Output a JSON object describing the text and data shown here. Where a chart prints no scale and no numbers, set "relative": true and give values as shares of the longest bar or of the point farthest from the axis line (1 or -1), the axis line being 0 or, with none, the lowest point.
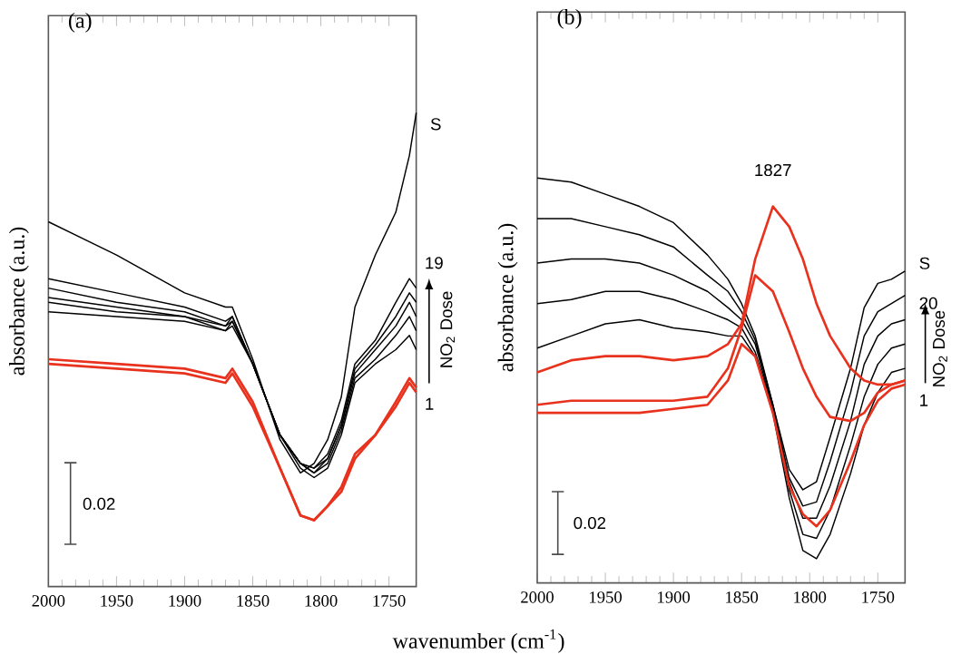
{
  "chart_data": [
    {
      "type": "line",
      "title": "(a)",
      "xlabel": "wavenumber (cm$^{-1}$)",
      "ylabel": "absorbance (a.u.)",
      "relative": true,
      "x": [
        2000,
        1950,
        1900,
        1870,
        1865,
        1850,
        1830,
        1815,
        1805,
        1795,
        1785,
        1775,
        1760,
        1745,
        1735,
        1730
      ],
      "xlim": [
        2000,
        1730
      ],
      "xticks": [
        2000,
        1950,
        1900,
        1850,
        1800,
        1750
      ],
      "series": [
        {
          "color": "#000000",
          "values": [
            0.77,
            0.7,
            0.62,
            0.59,
            0.59,
            0.48,
            0.31,
            0.24,
            0.26,
            0.31,
            0.4,
            0.59,
            0.7,
            0.79,
            0.91,
            1.0
          ]
        },
        {
          "color": "#000000",
          "values": [
            0.58,
            0.57,
            0.56,
            0.54,
            0.55,
            0.47,
            0.32,
            0.25,
            0.23,
            0.25,
            0.32,
            0.43,
            0.47,
            0.5,
            0.53,
            0.5
          ]
        },
        {
          "color": "#000000",
          "values": [
            0.6,
            0.58,
            0.57,
            0.54,
            0.56,
            0.47,
            0.32,
            0.26,
            0.24,
            0.26,
            0.33,
            0.44,
            0.48,
            0.53,
            0.57,
            0.54
          ]
        },
        {
          "color": "#000000",
          "values": [
            0.61,
            0.59,
            0.57,
            0.55,
            0.56,
            0.47,
            0.32,
            0.26,
            0.24,
            0.27,
            0.34,
            0.45,
            0.5,
            0.55,
            0.6,
            0.57
          ]
        },
        {
          "color": "#000000",
          "values": [
            0.63,
            0.6,
            0.58,
            0.55,
            0.57,
            0.47,
            0.32,
            0.26,
            0.25,
            0.27,
            0.34,
            0.46,
            0.51,
            0.57,
            0.62,
            0.6
          ]
        },
        {
          "color": "#000000",
          "values": [
            0.65,
            0.62,
            0.59,
            0.56,
            0.57,
            0.47,
            0.32,
            0.26,
            0.25,
            0.28,
            0.35,
            0.47,
            0.52,
            0.6,
            0.65,
            0.63
          ]
        },
        {
          "color": "#e8321e",
          "values": [
            0.48,
            0.47,
            0.46,
            0.44,
            0.46,
            0.39,
            0.25,
            0.15,
            0.14,
            0.17,
            0.21,
            0.28,
            0.32,
            0.39,
            0.44,
            0.42
          ]
        },
        {
          "color": "#e8321e",
          "values": [
            0.47,
            0.46,
            0.45,
            0.43,
            0.45,
            0.38,
            0.25,
            0.15,
            0.14,
            0.17,
            0.2,
            0.27,
            0.32,
            0.38,
            0.43,
            0.41
          ]
        }
      ],
      "annotations": [
        "S",
        "19",
        "1",
        "NO$_{2}$ Dose",
        "0.02"
      ]
    },
    {
      "type": "line",
      "title": "(b)",
      "ylabel": "absorbance (a.u.)",
      "relative": true,
      "x": [
        2000,
        1975,
        1950,
        1925,
        1900,
        1875,
        1860,
        1850,
        1840,
        1827,
        1815,
        1805,
        1795,
        1785,
        1770,
        1760,
        1750,
        1740,
        1730
      ],
      "xlim": [
        2000,
        1730
      ],
      "xticks": [
        2000,
        1950,
        1900,
        1850,
        1800,
        1750
      ],
      "series": [
        {
          "color": "#000000",
          "values": [
            1.0,
            0.99,
            0.96,
            0.93,
            0.89,
            0.81,
            0.75,
            0.69,
            0.61,
            0.44,
            0.28,
            0.23,
            0.25,
            0.36,
            0.53,
            0.68,
            0.74,
            0.75,
            0.77
          ]
        },
        {
          "color": "#000000",
          "values": [
            0.9,
            0.9,
            0.88,
            0.86,
            0.83,
            0.76,
            0.72,
            0.67,
            0.6,
            0.44,
            0.26,
            0.19,
            0.2,
            0.3,
            0.47,
            0.61,
            0.67,
            0.69,
            0.71
          ]
        },
        {
          "color": "#000000",
          "values": [
            0.79,
            0.8,
            0.8,
            0.79,
            0.76,
            0.72,
            0.68,
            0.65,
            0.59,
            0.43,
            0.25,
            0.16,
            0.16,
            0.24,
            0.4,
            0.54,
            0.61,
            0.64,
            0.65
          ]
        },
        {
          "color": "#000000",
          "values": [
            0.69,
            0.7,
            0.72,
            0.72,
            0.7,
            0.67,
            0.65,
            0.63,
            0.57,
            0.43,
            0.23,
            0.12,
            0.11,
            0.18,
            0.34,
            0.46,
            0.54,
            0.58,
            0.59
          ]
        },
        {
          "color": "#000000",
          "values": [
            0.58,
            0.61,
            0.64,
            0.65,
            0.63,
            0.62,
            0.61,
            0.61,
            0.56,
            0.42,
            0.21,
            0.08,
            0.06,
            0.12,
            0.27,
            0.39,
            0.47,
            0.52,
            0.53
          ]
        },
        {
          "color": "#e8321e",
          "values": [
            0.52,
            0.55,
            0.56,
            0.56,
            0.55,
            0.56,
            0.59,
            0.64,
            0.8,
            0.93,
            0.88,
            0.8,
            0.69,
            0.61,
            0.53,
            0.5,
            0.49,
            0.49,
            0.5
          ]
        },
        {
          "color": "#e8321e",
          "values": [
            0.44,
            0.45,
            0.45,
            0.45,
            0.45,
            0.46,
            0.53,
            0.63,
            0.76,
            0.72,
            0.62,
            0.53,
            0.46,
            0.41,
            0.4,
            0.42,
            0.47,
            0.49,
            0.5
          ]
        },
        {
          "color": "#e8321e",
          "values": [
            0.42,
            0.42,
            0.42,
            0.42,
            0.43,
            0.44,
            0.5,
            0.59,
            0.56,
            0.42,
            0.24,
            0.17,
            0.14,
            0.18,
            0.3,
            0.39,
            0.45,
            0.48,
            0.49
          ]
        }
      ],
      "annotations": [
        {
          "text": "1827",
          "x": 1827,
          "y": 0.93
        },
        "S",
        "20",
        "1",
        "NO$_{2}$ Dose",
        "0.02"
      ]
    }
  ]
}
